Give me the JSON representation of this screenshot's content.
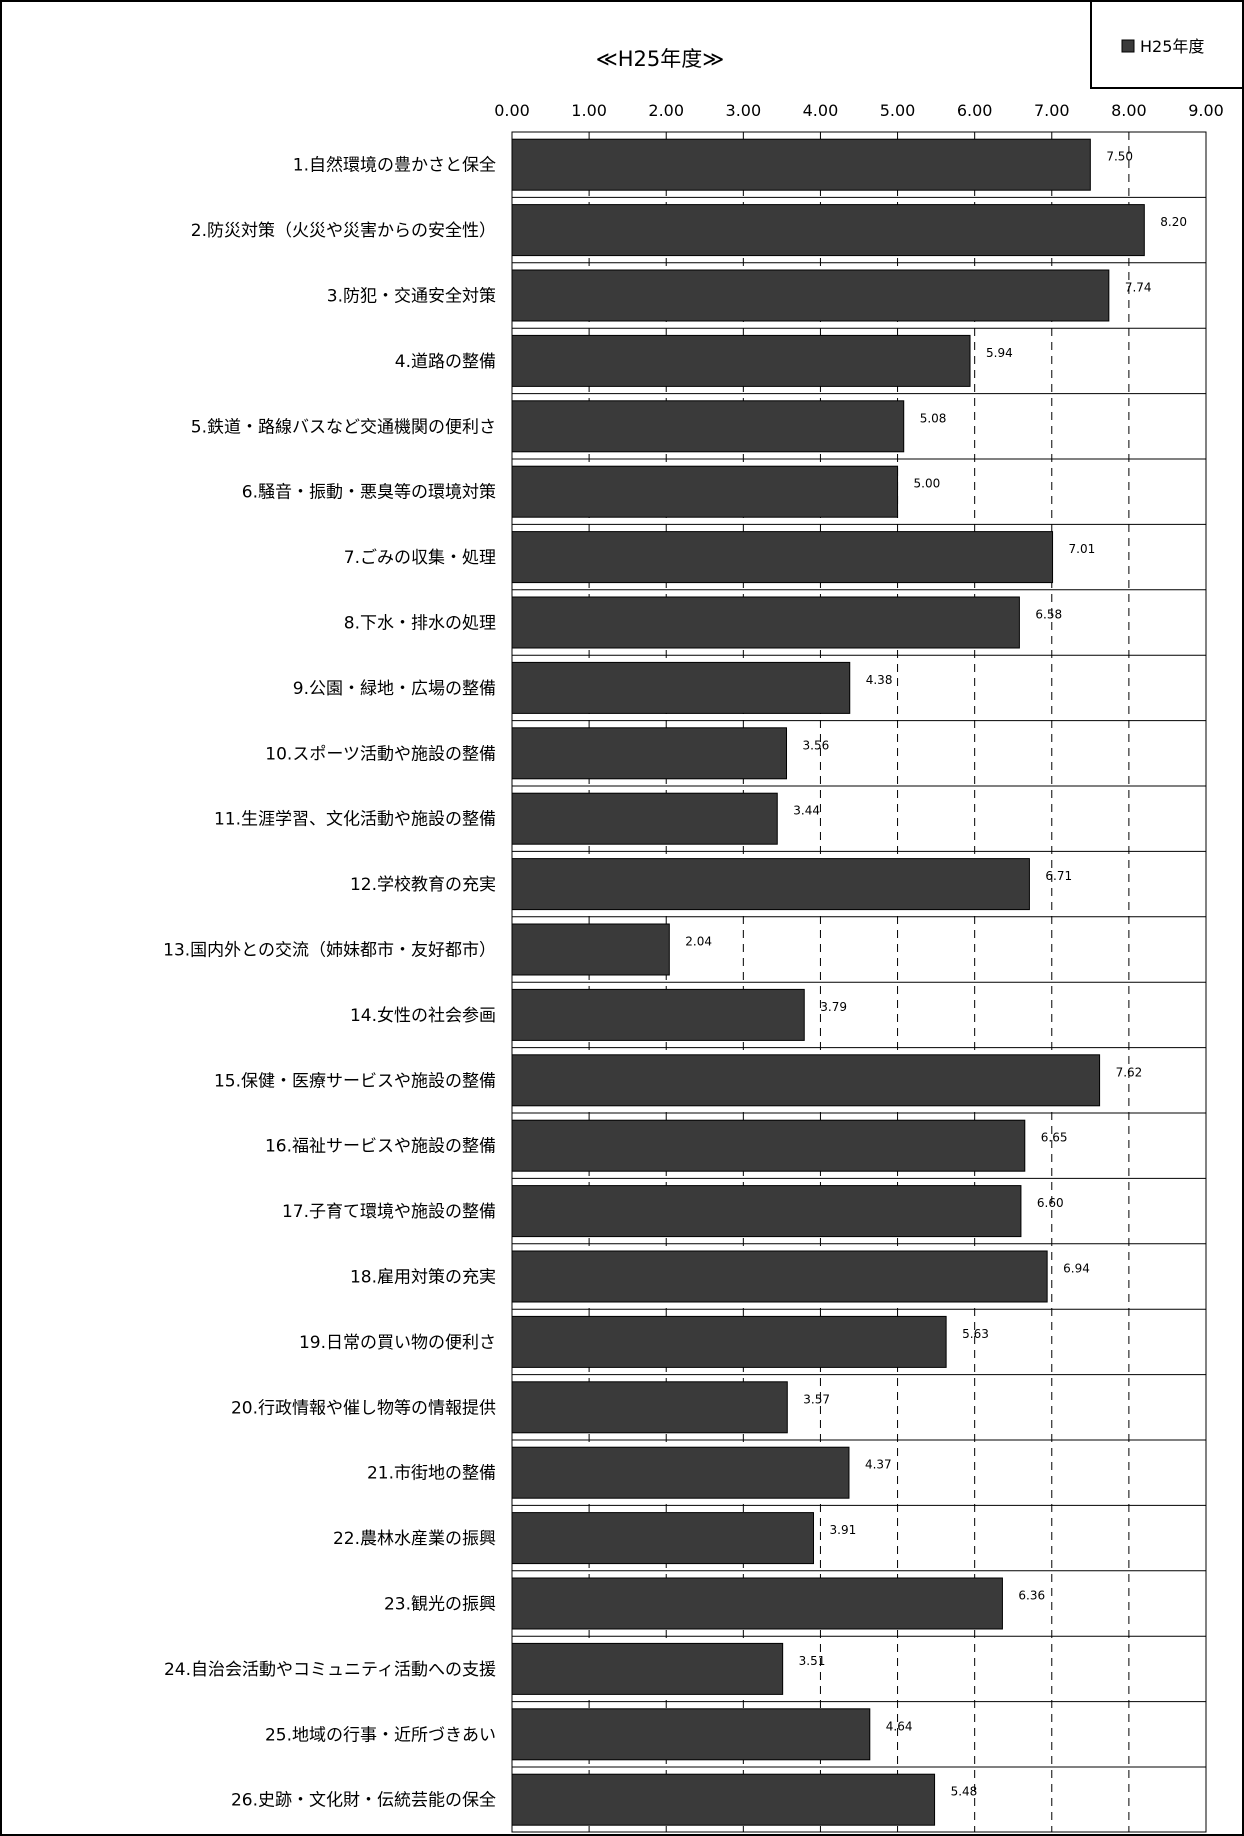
{
  "chart_data": {
    "type": "bar",
    "orientation": "horizontal",
    "title": "≪H25年度≫",
    "legend": {
      "position": "top-right",
      "entries": [
        "H25年度"
      ]
    },
    "xlim": [
      0,
      9
    ],
    "x_ticks": [
      "0.00",
      "1.00",
      "2.00",
      "3.00",
      "4.00",
      "5.00",
      "6.00",
      "7.00",
      "8.00",
      "9.00"
    ],
    "grid": {
      "vertical": "dashed",
      "horizontal": "solid"
    },
    "colors": {
      "bar": "#3a3a3a",
      "bar_edge": "#000000",
      "grid": "#000000",
      "frame": "#000000"
    },
    "series": [
      {
        "name": "H25年度",
        "values": [
          7.5,
          8.2,
          7.74,
          5.94,
          5.08,
          5.0,
          7.01,
          6.58,
          4.38,
          3.56,
          3.44,
          6.71,
          2.04,
          3.79,
          7.62,
          6.65,
          6.6,
          6.94,
          5.63,
          3.57,
          4.37,
          3.91,
          6.36,
          3.51,
          4.64,
          5.48
        ]
      }
    ],
    "value_labels": [
      "7.50",
      "8.20",
      "7.74",
      "5.94",
      "5.08",
      "5.00",
      "7.01",
      "6.58",
      "4.38",
      "3.56",
      "3.44",
      "6.71",
      "2.04",
      "3.79",
      "7.62",
      "6.65",
      "6.60",
      "6.94",
      "5.63",
      "3.57",
      "4.37",
      "3.91",
      "6.36",
      "3.51",
      "4.64",
      "5.48"
    ],
    "categories": [
      "1.自然環境の豊かさと保全",
      "2.防災対策（火災や災害からの安全性）",
      "3.防犯・交通安全対策",
      "4.道路の整備",
      "5.鉄道・路線バスなど交通機関の便利さ",
      "6.騒音・振動・悪臭等の環境対策",
      "7.ごみの収集・処理",
      "8.下水・排水の処理",
      "9.公園・緑地・広場の整備",
      "10.スポーツ活動や施設の整備",
      "11.生涯学習、文化活動や施設の整備",
      "12.学校教育の充実",
      "13.国内外との交流（姉妹都市・友好都市）",
      "14.女性の社会参画",
      "15.保健・医療サービスや施設の整備",
      "16.福祉サービスや施設の整備",
      "17.子育て環境や施設の整備",
      "18.雇用対策の充実",
      "19.日常の買い物の便利さ",
      "20.行政情報や催し物等の情報提供",
      "21.市街地の整備",
      "22.農林水産業の振興",
      "23.観光の振興",
      "24.自治会活動やコミュニティ活動への支援",
      "25.地域の行事・近所づきあい",
      "26.史跡・文化財・伝統芸能の保全"
    ]
  }
}
